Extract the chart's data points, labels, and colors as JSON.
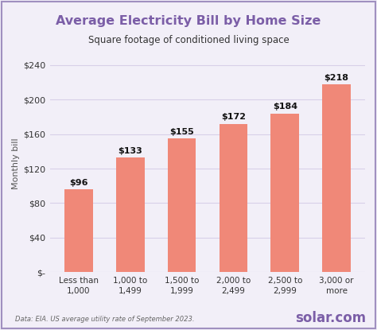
{
  "title": "Average Electricity Bill by Home Size",
  "subtitle": "Square footage of conditioned living space",
  "ylabel": "Monthly bill",
  "categories": [
    "Less than\n1,000",
    "1,000 to\n1,499",
    "1,500 to\n1,999",
    "2,000 to\n2,499",
    "2,500 to\n2,999",
    "3,000 or\nmore"
  ],
  "values": [
    96,
    133,
    155,
    172,
    184,
    218
  ],
  "bar_color": "#F08878",
  "title_color": "#7B5EA7",
  "subtitle_color": "#333333",
  "ylabel_color": "#555555",
  "value_labels": [
    "$96",
    "$133",
    "$155",
    "$172",
    "$184",
    "$218"
  ],
  "ytick_labels": [
    "$-",
    "$40",
    "$80",
    "$120",
    "$160",
    "$200",
    "$240"
  ],
  "ytick_values": [
    0,
    40,
    80,
    120,
    160,
    200,
    240
  ],
  "ylim": [
    0,
    252
  ],
  "footer_text": "Data: EIA. US average utility rate of September 2023.",
  "footer_logo": "solar.com",
  "background_color": "#F2EFF8",
  "plot_bg_color": "#F2EFF8",
  "border_color": "#A090C0",
  "grid_color": "#D8D0E8"
}
